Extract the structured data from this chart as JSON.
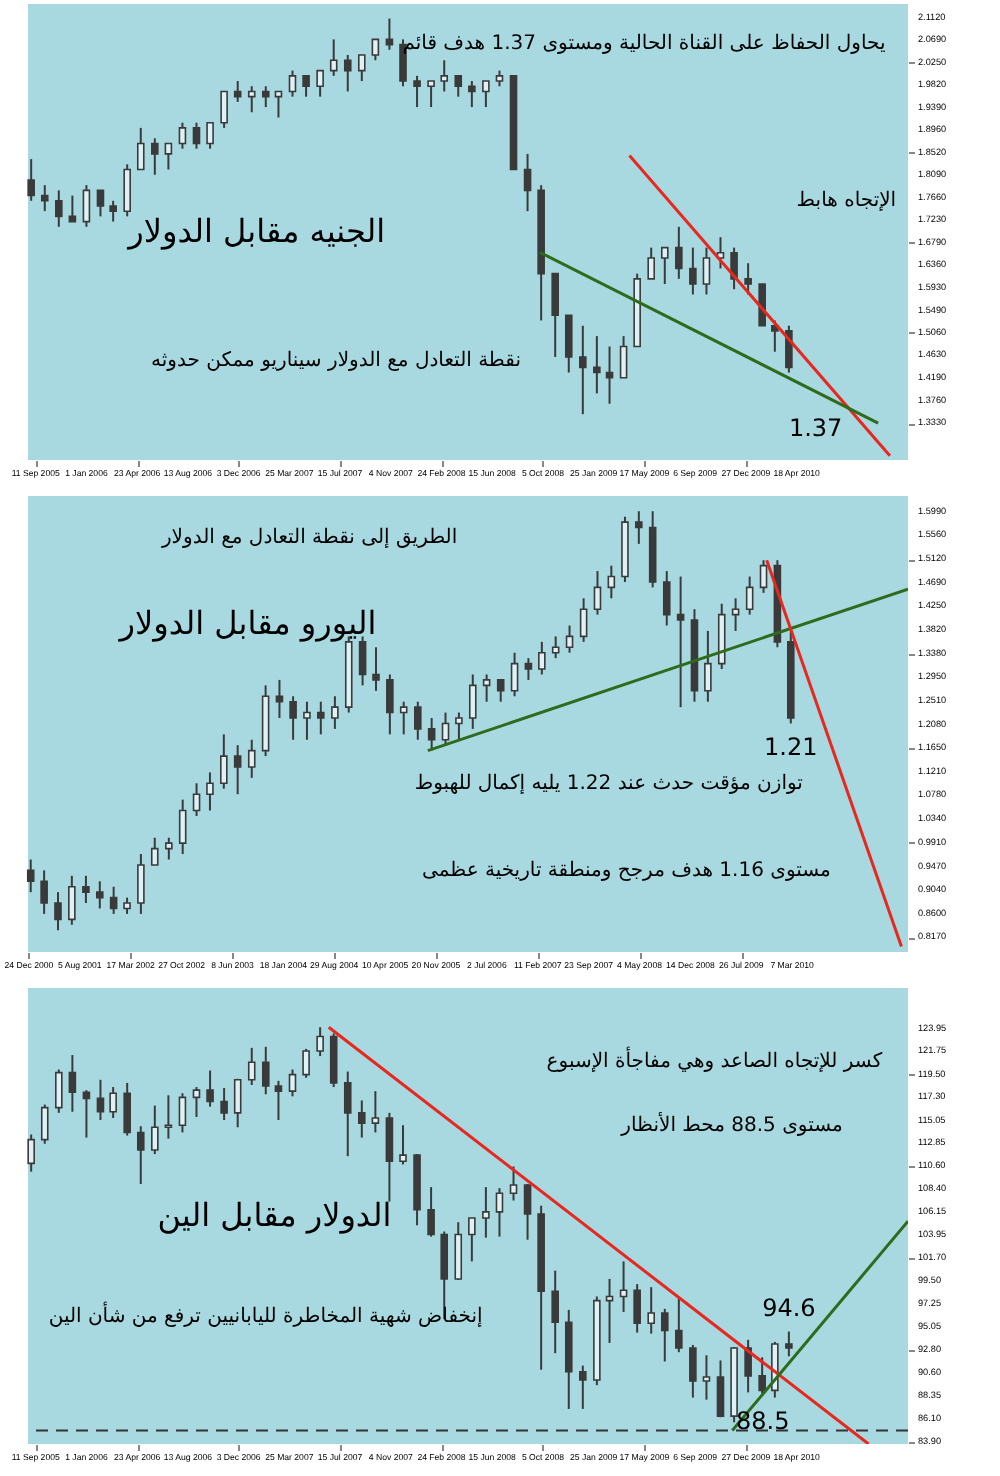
{
  "chart_data": [
    {
      "type": "candlestick",
      "color": "#3a3a3a",
      "annotations": [
        "يحاول الحفاظ على القناة الحالية ومستوى 1.37 هدف قائم",
        "الإتجاه هابط",
        "الجنيه مقابل الدولار",
        "نقطة التعادل مع الدولار سيناريو ممكن حدوثه",
        "1.37"
      ],
      "x": [
        "2005-09",
        "2005-10",
        "2005-11",
        "2005-12",
        "2006-01",
        "2006-02",
        "2006-03",
        "2006-04",
        "2006-05",
        "2006-06",
        "2006-07",
        "2006-08",
        "2006-09",
        "2006-10",
        "2006-11",
        "2006-12",
        "2007-01",
        "2007-02",
        "2007-03",
        "2007-04",
        "2007-05",
        "2007-06",
        "2007-07",
        "2007-08",
        "2007-09",
        "2007-10",
        "2007-11",
        "2007-12",
        "2008-01",
        "2008-02",
        "2008-03",
        "2008-04",
        "2008-05",
        "2008-06",
        "2008-07",
        "2008-08",
        "2008-09",
        "2008-10",
        "2008-11",
        "2008-12",
        "2009-01",
        "2009-02",
        "2009-03",
        "2009-04",
        "2009-05",
        "2009-06",
        "2009-07",
        "2009-08",
        "2009-09",
        "2009-10",
        "2009-11",
        "2009-12",
        "2010-01",
        "2010-02",
        "2010-03",
        "2010-04"
      ],
      "ohlc": [
        [
          1.8,
          1.84,
          1.76,
          1.77
        ],
        [
          1.77,
          1.79,
          1.74,
          1.76
        ],
        [
          1.76,
          1.78,
          1.71,
          1.73
        ],
        [
          1.73,
          1.77,
          1.72,
          1.72
        ],
        [
          1.72,
          1.79,
          1.71,
          1.78
        ],
        [
          1.78,
          1.78,
          1.73,
          1.75
        ],
        [
          1.75,
          1.76,
          1.72,
          1.74
        ],
        [
          1.74,
          1.83,
          1.73,
          1.82
        ],
        [
          1.82,
          1.9,
          1.82,
          1.87
        ],
        [
          1.87,
          1.88,
          1.81,
          1.85
        ],
        [
          1.85,
          1.87,
          1.82,
          1.87
        ],
        [
          1.87,
          1.91,
          1.86,
          1.9
        ],
        [
          1.9,
          1.91,
          1.86,
          1.87
        ],
        [
          1.87,
          1.91,
          1.86,
          1.91
        ],
        [
          1.91,
          1.97,
          1.9,
          1.97
        ],
        [
          1.97,
          1.99,
          1.95,
          1.96
        ],
        [
          1.96,
          1.98,
          1.93,
          1.97
        ],
        [
          1.97,
          1.98,
          1.94,
          1.96
        ],
        [
          1.96,
          1.97,
          1.92,
          1.97
        ],
        [
          1.97,
          2.01,
          1.96,
          2.0
        ],
        [
          2.0,
          2.0,
          1.96,
          1.98
        ],
        [
          1.98,
          2.01,
          1.96,
          2.01
        ],
        [
          2.01,
          2.07,
          2.0,
          2.03
        ],
        [
          2.03,
          2.04,
          1.97,
          2.01
        ],
        [
          2.01,
          2.04,
          1.99,
          2.04
        ],
        [
          2.04,
          2.07,
          2.03,
          2.07
        ],
        [
          2.07,
          2.11,
          2.05,
          2.06
        ],
        [
          2.06,
          2.07,
          1.98,
          1.99
        ],
        [
          1.99,
          2.0,
          1.94,
          1.98
        ],
        [
          1.98,
          1.99,
          1.94,
          1.99
        ],
        [
          1.99,
          2.03,
          1.97,
          2.0
        ],
        [
          2.0,
          2.0,
          1.96,
          1.98
        ],
        [
          1.98,
          1.99,
          1.94,
          1.97
        ],
        [
          1.97,
          1.99,
          1.94,
          1.99
        ],
        [
          1.99,
          2.01,
          1.98,
          2.0
        ],
        [
          2.0,
          2.0,
          1.82,
          1.82
        ],
        [
          1.82,
          1.85,
          1.74,
          1.78
        ],
        [
          1.78,
          1.79,
          1.53,
          1.62
        ],
        [
          1.62,
          1.62,
          1.46,
          1.54
        ],
        [
          1.54,
          1.54,
          1.43,
          1.46
        ],
        [
          1.46,
          1.52,
          1.35,
          1.44
        ],
        [
          1.44,
          1.5,
          1.39,
          1.43
        ],
        [
          1.43,
          1.48,
          1.37,
          1.42
        ],
        [
          1.42,
          1.5,
          1.42,
          1.48
        ],
        [
          1.48,
          1.62,
          1.48,
          1.61
        ],
        [
          1.61,
          1.67,
          1.61,
          1.65
        ],
        [
          1.65,
          1.67,
          1.6,
          1.67
        ],
        [
          1.67,
          1.71,
          1.61,
          1.63
        ],
        [
          1.63,
          1.67,
          1.58,
          1.6
        ],
        [
          1.6,
          1.67,
          1.58,
          1.65
        ],
        [
          1.65,
          1.69,
          1.63,
          1.66
        ],
        [
          1.66,
          1.67,
          1.59,
          1.61
        ],
        [
          1.61,
          1.64,
          1.58,
          1.6
        ],
        [
          1.6,
          1.6,
          1.52,
          1.52
        ],
        [
          1.52,
          1.53,
          1.47,
          1.51
        ],
        [
          1.51,
          1.52,
          1.43,
          1.44
        ]
      ],
      "series": [
        {
          "type": "line",
          "color": "#e8281e",
          "x": [
            "2009-04-14",
            "2010-11-10"
          ],
          "values": [
            1.847,
            1.27
          ]
        },
        {
          "type": "line",
          "color": "#2f6b1c",
          "x": [
            "2008-09-28",
            "2010-10-15"
          ],
          "values": [
            1.661,
            1.333
          ]
        }
      ],
      "xlim": [
        "2005-08-25",
        "2010-12-20"
      ],
      "xticks": [
        {
          "value": "2005-09-11",
          "label": "11 Sep 2005"
        },
        {
          "value": "2006-01-01",
          "label": "1 Jan 2006"
        },
        {
          "value": "2006-04-23",
          "label": "23 Apr 2006"
        },
        {
          "value": "2006-08-13",
          "label": "13 Aug 2006"
        },
        {
          "value": "2006-12-03",
          "label": "3 Dec 2006"
        },
        {
          "value": "2007-03-25",
          "label": "25 Mar 2007"
        },
        {
          "value": "2007-07-15",
          "label": "15 Jul 2007"
        },
        {
          "value": "2007-11-04",
          "label": "4 Nov 2007"
        },
        {
          "value": "2008-02-24",
          "label": "24 Feb 2008"
        },
        {
          "value": "2008-06-15",
          "label": "15 Jun 2008"
        },
        {
          "value": "2008-10-05",
          "label": "5 Oct 2008"
        },
        {
          "value": "2009-01-25",
          "label": "25 Jan 2009"
        },
        {
          "value": "2009-05-17",
          "label": "17 May 2009"
        },
        {
          "value": "2009-09-06",
          "label": "6 Sep 2009"
        },
        {
          "value": "2009-12-27",
          "label": "27 Dec 2009"
        },
        {
          "value": "2010-04-18",
          "label": "18 Apr 2010"
        }
      ],
      "ylim": [
        1.262,
        2.138
      ],
      "yticks": [
        {
          "value": 2.112,
          "label": "2.1120"
        },
        {
          "value": 2.069,
          "label": "2.0690"
        },
        {
          "value": 2.025,
          "label": "2.0250"
        },
        {
          "value": 1.982,
          "label": "1.9820"
        },
        {
          "value": 1.939,
          "label": "1.9390"
        },
        {
          "value": 1.896,
          "label": "1.8960"
        },
        {
          "value": 1.852,
          "label": "1.8520"
        },
        {
          "value": 1.809,
          "label": "1.8090"
        },
        {
          "value": 1.766,
          "label": "1.7660"
        },
        {
          "value": 1.723,
          "label": "1.7230"
        },
        {
          "value": 1.679,
          "label": "1.6790"
        },
        {
          "value": 1.636,
          "label": "1.6360"
        },
        {
          "value": 1.593,
          "label": "1.5930"
        },
        {
          "value": 1.549,
          "label": "1.5490"
        },
        {
          "value": 1.506,
          "label": "1.5060"
        },
        {
          "value": 1.463,
          "label": "1.4630"
        },
        {
          "value": 1.419,
          "label": "1.4190"
        },
        {
          "value": 1.376,
          "label": "1.3760"
        },
        {
          "value": 1.333,
          "label": "1.3330"
        }
      ]
    },
    {
      "type": "candlestick",
      "color": "#3a3a3a",
      "annotations": [
        "الطريق إلى نقطة التعادل مع الدولار",
        "اليورو مقابل الدولار",
        "توازن مؤقت حدث عند 1.22 يليه إكمال للهبوط",
        "مستوى 1.16 هدف مرجح ومنطقة تاريخية عظمى",
        {
          "text": "1.21",
          "x": "2010-03",
          "y": 1.21
        }
      ],
      "x": [
        "2001-01",
        "2001-03",
        "2001-05",
        "2001-07",
        "2001-09",
        "2001-11",
        "2002-01",
        "2002-03",
        "2002-05",
        "2002-07",
        "2002-09",
        "2002-11",
        "2003-01",
        "2003-03",
        "2003-05",
        "2003-07",
        "2003-09",
        "2003-11",
        "2004-01",
        "2004-03",
        "2004-05",
        "2004-07",
        "2004-09",
        "2004-11",
        "2005-01",
        "2005-03",
        "2005-05",
        "2005-07",
        "2005-09",
        "2005-11",
        "2006-01",
        "2006-03",
        "2006-05",
        "2006-07",
        "2006-09",
        "2006-11",
        "2007-01",
        "2007-03",
        "2007-05",
        "2007-07",
        "2007-09",
        "2007-11",
        "2008-01",
        "2008-03",
        "2008-05",
        "2008-07",
        "2008-09",
        "2008-11",
        "2009-01",
        "2009-03",
        "2009-05",
        "2009-07",
        "2009-09",
        "2009-11",
        "2010-01",
        "2010-03"
      ],
      "ohlc": [
        [
          0.94,
          0.96,
          0.9,
          0.92
        ],
        [
          0.92,
          0.94,
          0.86,
          0.88
        ],
        [
          0.88,
          0.9,
          0.83,
          0.85
        ],
        [
          0.85,
          0.93,
          0.84,
          0.91
        ],
        [
          0.91,
          0.93,
          0.88,
          0.9
        ],
        [
          0.9,
          0.92,
          0.87,
          0.89
        ],
        [
          0.89,
          0.91,
          0.86,
          0.87
        ],
        [
          0.87,
          0.89,
          0.86,
          0.88
        ],
        [
          0.88,
          0.97,
          0.86,
          0.95
        ],
        [
          0.95,
          1.0,
          0.95,
          0.98
        ],
        [
          0.98,
          1.0,
          0.96,
          0.99
        ],
        [
          0.99,
          1.07,
          0.97,
          1.05
        ],
        [
          1.05,
          1.1,
          1.04,
          1.08
        ],
        [
          1.08,
          1.12,
          1.05,
          1.1
        ],
        [
          1.1,
          1.19,
          1.09,
          1.15
        ],
        [
          1.15,
          1.17,
          1.08,
          1.13
        ],
        [
          1.13,
          1.18,
          1.11,
          1.16
        ],
        [
          1.16,
          1.28,
          1.15,
          1.26
        ],
        [
          1.26,
          1.29,
          1.22,
          1.25
        ],
        [
          1.25,
          1.26,
          1.18,
          1.22
        ],
        [
          1.22,
          1.25,
          1.18,
          1.23
        ],
        [
          1.23,
          1.25,
          1.19,
          1.22
        ],
        [
          1.22,
          1.26,
          1.2,
          1.24
        ],
        [
          1.24,
          1.37,
          1.23,
          1.36
        ],
        [
          1.36,
          1.37,
          1.28,
          1.3
        ],
        [
          1.3,
          1.35,
          1.27,
          1.29
        ],
        [
          1.29,
          1.3,
          1.19,
          1.23
        ],
        [
          1.23,
          1.25,
          1.19,
          1.24
        ],
        [
          1.24,
          1.25,
          1.18,
          1.2
        ],
        [
          1.2,
          1.22,
          1.16,
          1.18
        ],
        [
          1.18,
          1.23,
          1.17,
          1.21
        ],
        [
          1.21,
          1.23,
          1.18,
          1.22
        ],
        [
          1.22,
          1.3,
          1.2,
          1.28
        ],
        [
          1.28,
          1.3,
          1.25,
          1.29
        ],
        [
          1.29,
          1.29,
          1.25,
          1.27
        ],
        [
          1.27,
          1.34,
          1.26,
          1.32
        ],
        [
          1.32,
          1.33,
          1.29,
          1.31
        ],
        [
          1.31,
          1.36,
          1.3,
          1.34
        ],
        [
          1.34,
          1.37,
          1.33,
          1.35
        ],
        [
          1.35,
          1.39,
          1.34,
          1.37
        ],
        [
          1.37,
          1.44,
          1.36,
          1.42
        ],
        [
          1.42,
          1.49,
          1.41,
          1.46
        ],
        [
          1.46,
          1.5,
          1.44,
          1.48
        ],
        [
          1.48,
          1.59,
          1.47,
          1.58
        ],
        [
          1.58,
          1.6,
          1.54,
          1.57
        ],
        [
          1.57,
          1.6,
          1.46,
          1.47
        ],
        [
          1.47,
          1.49,
          1.39,
          1.41
        ],
        [
          1.41,
          1.48,
          1.24,
          1.4
        ],
        [
          1.4,
          1.42,
          1.25,
          1.27
        ],
        [
          1.27,
          1.38,
          1.25,
          1.32
        ],
        [
          1.32,
          1.43,
          1.31,
          1.41
        ],
        [
          1.41,
          1.44,
          1.38,
          1.42
        ],
        [
          1.42,
          1.48,
          1.41,
          1.46
        ],
        [
          1.46,
          1.51,
          1.45,
          1.5
        ],
        [
          1.5,
          1.51,
          1.35,
          1.36
        ],
        [
          1.36,
          1.38,
          1.21,
          1.22
        ]
      ],
      "series": [
        {
          "type": "line",
          "color": "#2f6b1c",
          "x": [
            "2005-10-15",
            "2011-07-30"
          ],
          "values": [
            1.16,
            1.457
          ]
        },
        {
          "type": "line",
          "color": "#e8281e",
          "x": [
            "2009-11-15",
            "2011-07-01"
          ],
          "values": [
            1.51,
            0.8
          ]
        }
      ],
      "xlim": [
        "2000-12-20",
        "2011-07-30"
      ],
      "xticks": [
        {
          "value": "2000-12-24",
          "label": "24 Dec 2000"
        },
        {
          "value": "2001-08-05",
          "label": "5 Aug 2001"
        },
        {
          "value": "2002-03-17",
          "label": "17 Mar 2002"
        },
        {
          "value": "2002-10-27",
          "label": "27 Oct 2002"
        },
        {
          "value": "2003-06-08",
          "label": "8 Jun 2003"
        },
        {
          "value": "2004-01-18",
          "label": "18 Jan 2004"
        },
        {
          "value": "2004-08-29",
          "label": "29 Aug 2004"
        },
        {
          "value": "2005-04-10",
          "label": "10 Apr 2005"
        },
        {
          "value": "2005-11-20",
          "label": "20 Nov 2005"
        },
        {
          "value": "2006-07-02",
          "label": "2 Jul 2006"
        },
        {
          "value": "2007-02-11",
          "label": "11 Feb 2007"
        },
        {
          "value": "2007-09-23",
          "label": "23 Sep 2007"
        },
        {
          "value": "2008-05-04",
          "label": "4 May 2008"
        },
        {
          "value": "2008-12-14",
          "label": "14 Dec 2008"
        },
        {
          "value": "2009-07-26",
          "label": "26 Jul 2009"
        },
        {
          "value": "2010-03-07",
          "label": "7 Mar 2010"
        }
      ],
      "ylim": [
        0.79,
        1.628
      ],
      "yticks": [
        {
          "value": 1.599,
          "label": "1.5990"
        },
        {
          "value": 1.556,
          "label": "1.5560"
        },
        {
          "value": 1.512,
          "label": "1.5120"
        },
        {
          "value": 1.469,
          "label": "1.4690"
        },
        {
          "value": 1.425,
          "label": "1.4250"
        },
        {
          "value": 1.382,
          "label": "1.3820"
        },
        {
          "value": 1.338,
          "label": "1.3380"
        },
        {
          "value": 1.295,
          "label": "1.2950"
        },
        {
          "value": 1.251,
          "label": "1.2510"
        },
        {
          "value": 1.208,
          "label": "1.2080"
        },
        {
          "value": 1.165,
          "label": "1.1650"
        },
        {
          "value": 1.121,
          "label": "1.1210"
        },
        {
          "value": 1.078,
          "label": "1.0780"
        },
        {
          "value": 1.034,
          "label": "1.0340"
        },
        {
          "value": 0.991,
          "label": "0.9910"
        },
        {
          "value": 0.947,
          "label": "0.9470"
        },
        {
          "value": 0.904,
          "label": "0.9040"
        },
        {
          "value": 0.86,
          "label": "0.8600"
        },
        {
          "value": 0.817,
          "label": "0.8170"
        }
      ]
    },
    {
      "type": "candlestick",
      "color": "#3a3a3a",
      "annotations": [
        "كسر للإتجاه الصاعد وهي مفاجأة الإسبوع",
        "مستوى 88.5 محط الأنظار",
        "الدولار مقابل الين",
        "إنخفاض شهية المخاطرة لليابانيين ترفع من شأن الين",
        {
          "text": "94.6",
          "x": "2010-04",
          "y": 94.6
        },
        "88.5"
      ],
      "x": [
        "2005-09",
        "2005-10",
        "2005-11",
        "2005-12",
        "2006-01",
        "2006-02",
        "2006-03",
        "2006-04",
        "2006-05",
        "2006-06",
        "2006-07",
        "2006-08",
        "2006-09",
        "2006-10",
        "2006-11",
        "2006-12",
        "2007-01",
        "2007-02",
        "2007-03",
        "2007-04",
        "2007-05",
        "2007-06",
        "2007-07",
        "2007-08",
        "2007-09",
        "2007-10",
        "2007-11",
        "2007-12",
        "2008-01",
        "2008-02",
        "2008-03",
        "2008-04",
        "2008-05",
        "2008-06",
        "2008-07",
        "2008-08",
        "2008-09",
        "2008-10",
        "2008-11",
        "2008-12",
        "2009-01",
        "2009-02",
        "2009-03",
        "2009-04",
        "2009-05",
        "2009-06",
        "2009-07",
        "2009-08",
        "2009-09",
        "2009-10",
        "2009-11",
        "2009-12",
        "2010-01",
        "2010-02",
        "2010-03",
        "2010-04"
      ],
      "ohlc": [
        [
          110.9,
          113.7,
          110.1,
          113.2
        ],
        [
          113.2,
          116.6,
          112.8,
          116.3
        ],
        [
          116.3,
          120.0,
          115.8,
          119.7
        ],
        [
          119.7,
          121.4,
          115.9,
          117.8
        ],
        [
          117.8,
          118.0,
          113.4,
          117.2
        ],
        [
          117.2,
          119.0,
          115.1,
          115.9
        ],
        [
          115.9,
          118.3,
          115.3,
          117.7
        ],
        [
          117.7,
          118.7,
          113.6,
          113.9
        ],
        [
          113.9,
          114.5,
          108.9,
          112.2
        ],
        [
          112.2,
          116.5,
          111.8,
          114.4
        ],
        [
          114.4,
          117.5,
          113.3,
          114.6
        ],
        [
          114.6,
          117.7,
          113.9,
          117.3
        ],
        [
          117.3,
          118.3,
          115.4,
          118.0
        ],
        [
          118.0,
          119.9,
          116.4,
          116.9
        ],
        [
          116.9,
          118.2,
          115.1,
          115.8
        ],
        [
          115.8,
          119.1,
          114.4,
          119.0
        ],
        [
          119.0,
          122.1,
          118.5,
          120.7
        ],
        [
          120.7,
          122.2,
          117.6,
          118.4
        ],
        [
          118.4,
          118.9,
          115.1,
          117.9
        ],
        [
          117.9,
          120.0,
          117.4,
          119.5
        ],
        [
          119.5,
          122.0,
          119.2,
          121.8
        ],
        [
          121.8,
          124.1,
          121.3,
          123.2
        ],
        [
          123.2,
          123.5,
          118.3,
          118.7
        ],
        [
          118.7,
          119.8,
          111.6,
          115.8
        ],
        [
          115.8,
          117.0,
          113.4,
          114.8
        ],
        [
          114.8,
          117.9,
          113.9,
          115.3
        ],
        [
          115.3,
          115.8,
          107.2,
          111.1
        ],
        [
          111.1,
          114.6,
          110.8,
          111.7
        ],
        [
          111.7,
          111.8,
          104.9,
          106.4
        ],
        [
          106.4,
          108.6,
          103.8,
          104.0
        ],
        [
          104.0,
          104.3,
          95.8,
          99.7
        ],
        [
          99.7,
          105.2,
          99.6,
          104.0
        ],
        [
          104.0,
          105.6,
          101.4,
          105.6
        ],
        [
          105.6,
          108.6,
          103.7,
          106.2
        ],
        [
          106.2,
          108.5,
          103.8,
          108.0
        ],
        [
          108.0,
          110.6,
          107.3,
          108.8
        ],
        [
          108.8,
          108.9,
          103.5,
          106.0
        ],
        [
          106.0,
          106.8,
          90.9,
          98.5
        ],
        [
          98.5,
          100.5,
          92.5,
          95.5
        ],
        [
          95.5,
          96.7,
          87.1,
          90.7
        ],
        [
          90.7,
          91.3,
          87.1,
          89.9
        ],
        [
          89.9,
          98.0,
          89.4,
          97.6
        ],
        [
          97.6,
          99.7,
          93.5,
          98.0
        ],
        [
          98.0,
          101.4,
          96.5,
          98.6
        ],
        [
          98.6,
          99.2,
          94.5,
          95.4
        ],
        [
          95.4,
          98.9,
          94.4,
          96.4
        ],
        [
          96.4,
          96.8,
          91.7,
          94.7
        ],
        [
          94.7,
          97.8,
          92.6,
          93.0
        ],
        [
          93.0,
          93.3,
          88.2,
          89.8
        ],
        [
          89.8,
          92.3,
          88.0,
          90.2
        ],
        [
          90.2,
          91.8,
          86.3,
          86.4
        ],
        [
          86.4,
          93.1,
          85.8,
          93.0
        ],
        [
          93.0,
          93.8,
          88.7,
          90.3
        ],
        [
          90.3,
          92.1,
          88.6,
          88.9
        ],
        [
          88.9,
          93.6,
          88.2,
          93.4
        ],
        [
          93.4,
          94.6,
          92.2,
          93.0
        ]
      ],
      "series": [
        {
          "type": "line",
          "color": "#e8281e",
          "x": [
            "2007-06-20",
            "2010-09-24"
          ],
          "values": [
            124.1,
            83.7
          ]
        },
        {
          "type": "line",
          "color": "#2f6b1c",
          "x": [
            "2009-11-27",
            "2010-12-20"
          ],
          "values": [
            85.0,
            105.3
          ]
        }
      ],
      "ref_lines": [
        {
          "axis": "y",
          "value": 85.0,
          "color": "#333333",
          "line_style": "dashed"
        }
      ],
      "xlim": [
        "2005-08-25",
        "2010-12-20"
      ],
      "xticks": [
        {
          "value": "2005-09-11",
          "label": "11 Sep 2005"
        },
        {
          "value": "2006-01-01",
          "label": "1 Jan 2006"
        },
        {
          "value": "2006-04-23",
          "label": "23 Apr 2006"
        },
        {
          "value": "2006-08-13",
          "label": "13 Aug 2006"
        },
        {
          "value": "2006-12-03",
          "label": "3 Dec 2006"
        },
        {
          "value": "2007-03-25",
          "label": "25 Mar 2007"
        },
        {
          "value": "2007-07-15",
          "label": "15 Jul 2007"
        },
        {
          "value": "2007-11-04",
          "label": "4 Nov 2007"
        },
        {
          "value": "2008-02-24",
          "label": "24 Feb 2008"
        },
        {
          "value": "2008-06-15",
          "label": "15 Jun 2008"
        },
        {
          "value": "2008-10-05",
          "label": "5 Oct 2008"
        },
        {
          "value": "2009-01-25",
          "label": "25 Jan 2009"
        },
        {
          "value": "2009-05-17",
          "label": "17 May 2009"
        },
        {
          "value": "2009-09-06",
          "label": "6 Sep 2009"
        },
        {
          "value": "2009-12-27",
          "label": "27 Dec 2009"
        },
        {
          "value": "2010-04-18",
          "label": "18 Apr 2010"
        }
      ],
      "ylim": [
        83.7,
        127.9
      ],
      "yticks": [
        {
          "value": 123.95,
          "label": "123.95"
        },
        {
          "value": 121.75,
          "label": "121.75"
        },
        {
          "value": 119.5,
          "label": "119.50"
        },
        {
          "value": 117.3,
          "label": "117.30"
        },
        {
          "value": 115.05,
          "label": "115.05"
        },
        {
          "value": 112.85,
          "label": "112.85"
        },
        {
          "value": 110.6,
          "label": "110.60"
        },
        {
          "value": 108.4,
          "label": "108.40"
        },
        {
          "value": 106.15,
          "label": "106.15"
        },
        {
          "value": 103.95,
          "label": "103.95"
        },
        {
          "value": 101.7,
          "label": "101.70"
        },
        {
          "value": 99.5,
          "label": "99.50"
        },
        {
          "value": 97.25,
          "label": "97.25"
        },
        {
          "value": 95.05,
          "label": "95.05"
        },
        {
          "value": 92.8,
          "label": "92.80"
        },
        {
          "value": 90.6,
          "label": "90.60"
        },
        {
          "value": 88.35,
          "label": "88.35"
        },
        {
          "value": 86.1,
          "label": "86.10"
        },
        {
          "value": 83.9,
          "label": "83.90"
        }
      ]
    }
  ]
}
